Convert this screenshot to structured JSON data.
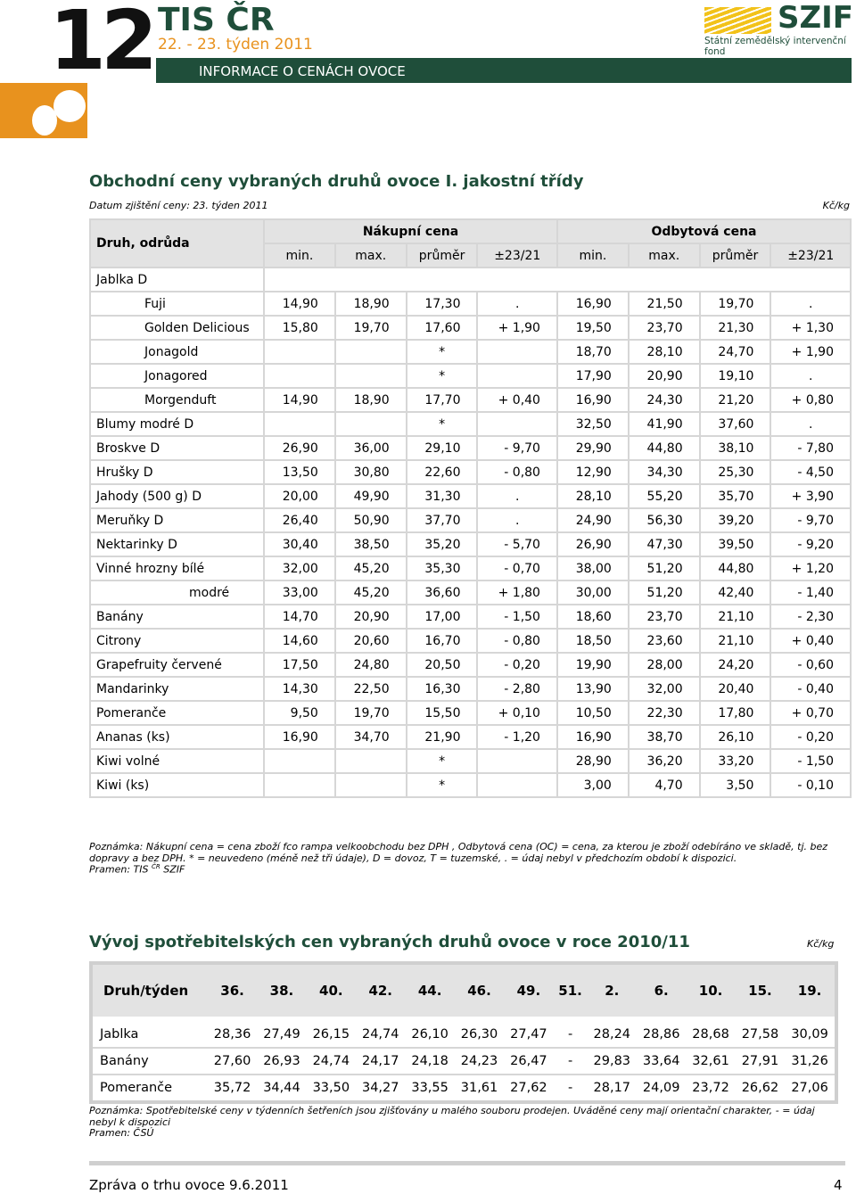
{
  "header": {
    "number": "12",
    "brand": "TIS ČR",
    "week": "22. - 23. týden 2011",
    "bar_title": "INFORMACE O CENÁCH OVOCE",
    "logo": "SZIF",
    "logo_sub": "Státní zemědělský intervenční fond"
  },
  "table1": {
    "title": "Obchodní ceny vybraných druhů ovoce I. jakostní třídy",
    "date": "Datum zjištění ceny: 23. týden 2011",
    "unit": "Kč/kg",
    "head": "Druh, odrůda",
    "groups": [
      "Nákupní cena",
      "Odbytová cena"
    ],
    "subheads": [
      "min.",
      "max.",
      "průměr",
      "±23/21",
      "min.",
      "max.",
      "průměr",
      "±23/21"
    ],
    "rows": [
      {
        "name": "Jablka D",
        "varieties": [
          {
            "name": "Fuji",
            "cells": [
              "14,90",
              "18,90",
              "17,30",
              ".",
              "16,90",
              "21,50",
              "19,70",
              "."
            ]
          },
          {
            "name": "Golden Delicious",
            "cells": [
              "15,80",
              "19,70",
              "17,60",
              "+ 1,90",
              "19,50",
              "23,70",
              "21,30",
              "+ 1,30"
            ]
          },
          {
            "name": "Jonagold",
            "cells": [
              null,
              null,
              "*",
              null,
              "18,70",
              "28,10",
              "24,70",
              "+ 1,90"
            ]
          },
          {
            "name": "Jonagored",
            "cells": [
              null,
              null,
              "*",
              null,
              "17,90",
              "20,90",
              "19,10",
              "."
            ]
          },
          {
            "name": "Morgenduft",
            "cells": [
              "14,90",
              "18,90",
              "17,70",
              "+ 0,40",
              "16,90",
              "24,30",
              "21,20",
              "+ 0,80"
            ]
          }
        ]
      },
      {
        "name": "Blumy modré D",
        "cells": [
          null,
          null,
          "*",
          null,
          "32,50",
          "41,90",
          "37,60",
          "."
        ]
      },
      {
        "name": "Broskve D",
        "cells": [
          "26,90",
          "36,00",
          "29,10",
          "- 9,70",
          "29,90",
          "44,80",
          "38,10",
          "- 7,80"
        ]
      },
      {
        "name": "Hrušky D",
        "cells": [
          "13,50",
          "30,80",
          "22,60",
          "- 0,80",
          "12,90",
          "34,30",
          "25,30",
          "- 4,50"
        ]
      },
      {
        "name": "Jahody (500 g) D",
        "cells": [
          "20,00",
          "49,90",
          "31,30",
          ".",
          "28,10",
          "55,20",
          "35,70",
          "+ 3,90"
        ]
      },
      {
        "name": "Meruňky D",
        "cells": [
          "26,40",
          "50,90",
          "37,70",
          ".",
          "24,90",
          "56,30",
          "39,20",
          "- 9,70"
        ]
      },
      {
        "name": "Nektarinky D",
        "cells": [
          "30,40",
          "38,50",
          "35,20",
          "- 5,70",
          "26,90",
          "47,30",
          "39,50",
          "- 9,20"
        ]
      },
      {
        "name": "Vinné hrozny bílé",
        "cells": [
          "32,00",
          "45,20",
          "35,30",
          "- 0,70",
          "38,00",
          "51,20",
          "44,80",
          "+ 1,20"
        ],
        "varieties": [
          {
            "name": "modré",
            "cells": [
              "33,00",
              "45,20",
              "36,60",
              "+ 1,80",
              "30,00",
              "51,20",
              "42,40",
              "- 1,40"
            ]
          }
        ]
      },
      {
        "name": "Banány",
        "cells": [
          "14,70",
          "20,90",
          "17,00",
          "- 1,50",
          "18,60",
          "23,70",
          "21,10",
          "- 2,30"
        ]
      },
      {
        "name": "Citrony",
        "cells": [
          "14,60",
          "20,60",
          "16,70",
          "- 0,80",
          "18,50",
          "23,60",
          "21,10",
          "+ 0,40"
        ]
      },
      {
        "name": "Grapefruity červené",
        "cells": [
          "17,50",
          "24,80",
          "20,50",
          "- 0,20",
          "19,90",
          "28,00",
          "24,20",
          "- 0,60"
        ]
      },
      {
        "name": "Mandarinky",
        "cells": [
          "14,30",
          "22,50",
          "16,30",
          "- 2,80",
          "13,90",
          "32,00",
          "20,40",
          "- 0,40"
        ]
      },
      {
        "name": "Pomeranče",
        "cells": [
          "9,50",
          "19,70",
          "15,50",
          "+ 0,10",
          "10,50",
          "22,30",
          "17,80",
          "+ 0,70"
        ]
      },
      {
        "name": "Ananas (ks)",
        "cells": [
          "16,90",
          "34,70",
          "21,90",
          "- 1,20",
          "16,90",
          "38,70",
          "26,10",
          "- 0,20"
        ]
      },
      {
        "name": "Kiwi volné",
        "cells": [
          null,
          null,
          "*",
          null,
          "28,90",
          "36,20",
          "33,20",
          "- 1,50"
        ]
      },
      {
        "name": "Kiwi (ks)",
        "cells": [
          null,
          null,
          "*",
          null,
          "3,00",
          "4,70",
          "3,50",
          "- 0,10"
        ]
      }
    ],
    "note": "Poznámka: Nákupní cena = cena zboží fco rampa velkoobchodu bez DPH , Odbytová cena (OC) = cena, za kterou je zboží odebíráno ve skladě, tj. bez dopravy a bez DPH. * = neuvedeno (méně než tři údaje), D = dovoz, T = tuzemské, . = údaj nebyl v předchozím období k dispozici.",
    "source": [
      "Pramen: TIS",
      "ČR",
      "SZIF"
    ]
  },
  "table2": {
    "title": "Vývoj spotřebitelských cen vybraných druhů ovoce v roce 2010/11",
    "unit": "Kč/kg",
    "head": "Druh/týden",
    "weeks": [
      "36.",
      "38.",
      "40.",
      "42.",
      "44.",
      "46.",
      "49.",
      "51.",
      "2.",
      "6.",
      "10.",
      "15.",
      "19."
    ],
    "rows": [
      {
        "name": "Jablka",
        "cells": [
          "28,36",
          "27,49",
          "26,15",
          "24,74",
          "26,10",
          "26,30",
          "27,47",
          "-",
          "28,24",
          "28,86",
          "28,68",
          "27,58",
          "30,09"
        ]
      },
      {
        "name": "Banány",
        "cells": [
          "27,60",
          "26,93",
          "24,74",
          "24,17",
          "24,18",
          "24,23",
          "26,47",
          "-",
          "29,83",
          "33,64",
          "32,61",
          "27,91",
          "31,26"
        ]
      },
      {
        "name": "Pomeranče",
        "cells": [
          "35,72",
          "34,44",
          "33,50",
          "34,27",
          "33,55",
          "31,61",
          "27,62",
          "-",
          "28,17",
          "24,09",
          "23,72",
          "26,62",
          "27,06"
        ]
      }
    ],
    "note": "Poznámka: Spotřebitelské ceny v týdenních šetřeních jsou zjišťovány u malého souboru prodejen. Uváděné ceny mají orientační charakter, - = údaj nebyl k dispozici",
    "source": "Pramen: ČSÚ"
  },
  "footer": {
    "text": "Zpráva o trhu ovoce 9.6.2011",
    "page": "4"
  }
}
